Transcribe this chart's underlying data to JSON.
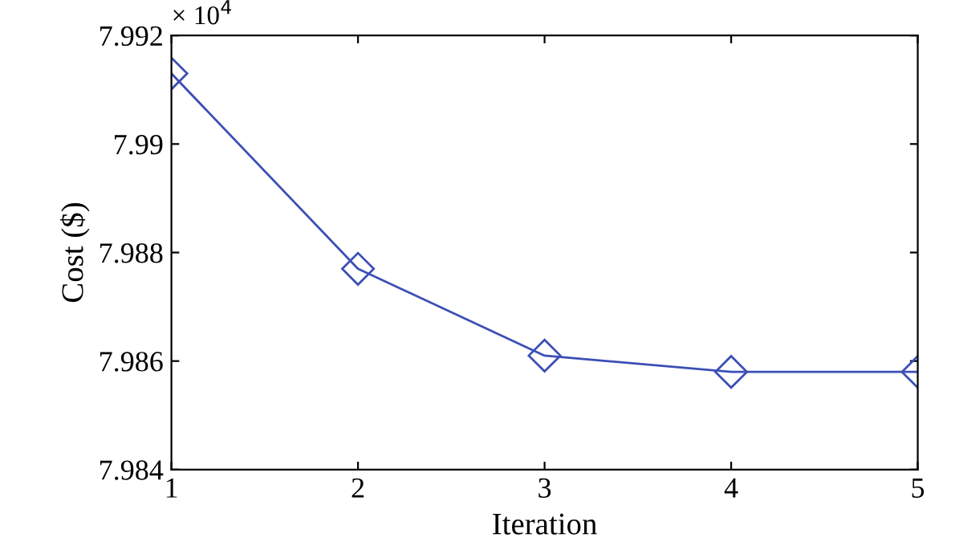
{
  "chart_data": {
    "type": "line",
    "xlabel": "Iteration",
    "ylabel": "Cost ($)",
    "x": [
      1,
      2,
      3,
      4,
      5
    ],
    "series": [
      {
        "color": "#3b4fb5",
        "values": [
          7.9913,
          7.9877,
          7.9861,
          7.9858,
          7.9858
        ]
      }
    ],
    "xlim": [
      1,
      5
    ],
    "xticks": [
      1,
      2,
      3,
      4,
      5
    ],
    "ylim": [
      7.984,
      7.992
    ],
    "yticks": [
      7.984,
      7.986,
      7.988,
      7.99,
      7.992
    ],
    "annotations": [
      "× 10$^{4}$"
    ],
    "marker": "diamond",
    "line_style": "solid",
    "grid": false,
    "legend": false
  }
}
